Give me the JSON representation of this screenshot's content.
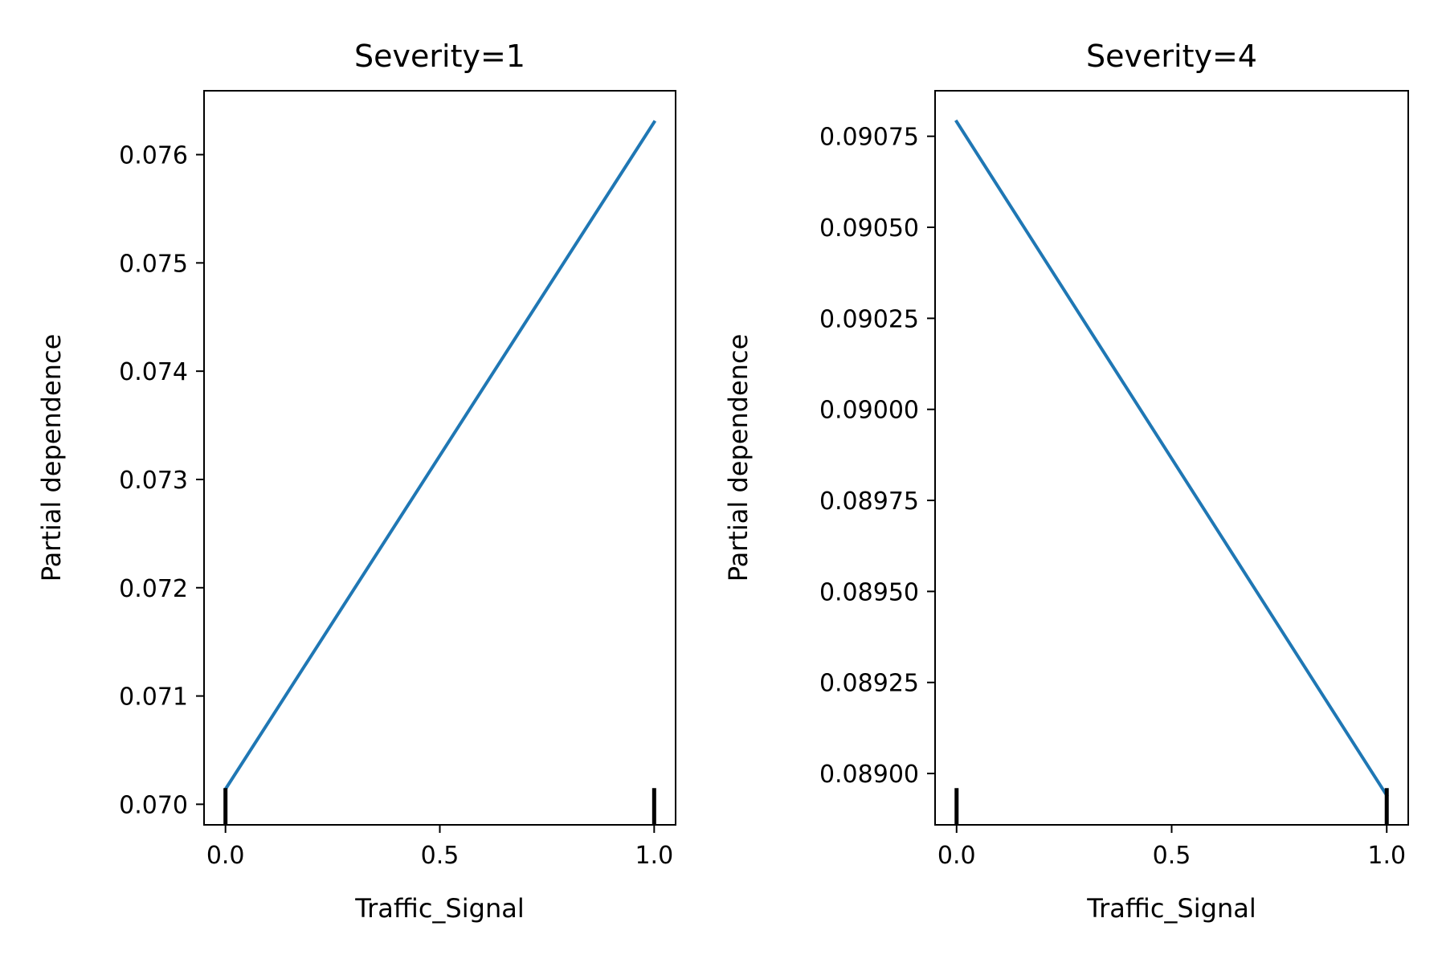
{
  "chart_data": [
    {
      "type": "line",
      "title": "Severity=1",
      "xlabel": "Traffic_Signal",
      "ylabel": "Partial dependence",
      "xlim": [
        -0.05,
        1.05
      ],
      "ylim": [
        0.06981,
        0.07659
      ],
      "xticks": [
        {
          "value": 0.0,
          "label": "0.0"
        },
        {
          "value": 0.5,
          "label": "0.5"
        },
        {
          "value": 1.0,
          "label": "1.0"
        }
      ],
      "yticks": [
        {
          "value": 0.07,
          "label": "0.070"
        },
        {
          "value": 0.071,
          "label": "0.071"
        },
        {
          "value": 0.072,
          "label": "0.072"
        },
        {
          "value": 0.073,
          "label": "0.073"
        },
        {
          "value": 0.074,
          "label": "0.074"
        },
        {
          "value": 0.075,
          "label": "0.075"
        },
        {
          "value": 0.076,
          "label": "0.076"
        }
      ],
      "x": [
        0.0,
        1.0
      ],
      "series": [
        {
          "values": [
            0.07014,
            0.0763
          ],
          "color": "#1f77b4"
        }
      ],
      "rug": [
        0.0,
        1.0
      ],
      "grid": false
    },
    {
      "type": "line",
      "title": "Severity=4",
      "xlabel": "Traffic_Signal",
      "ylabel": "Partial dependence",
      "xlim": [
        -0.05,
        1.05
      ],
      "ylim": [
        0.088859,
        0.090875
      ],
      "xticks": [
        {
          "value": 0.0,
          "label": "0.0"
        },
        {
          "value": 0.5,
          "label": "0.5"
        },
        {
          "value": 1.0,
          "label": "1.0"
        }
      ],
      "yticks": [
        {
          "value": 0.089,
          "label": "0.08900"
        },
        {
          "value": 0.08925,
          "label": "0.08925"
        },
        {
          "value": 0.0895,
          "label": "0.08950"
        },
        {
          "value": 0.08975,
          "label": "0.08975"
        },
        {
          "value": 0.09,
          "label": "0.09000"
        },
        {
          "value": 0.09025,
          "label": "0.09025"
        },
        {
          "value": 0.0905,
          "label": "0.09050"
        },
        {
          "value": 0.09075,
          "label": "0.09075"
        }
      ],
      "x": [
        0.0,
        1.0
      ],
      "series": [
        {
          "values": [
            0.09079,
            0.08894
          ],
          "color": "#1f77b4"
        }
      ],
      "rug": [
        0.0,
        1.0
      ],
      "grid": false
    }
  ]
}
